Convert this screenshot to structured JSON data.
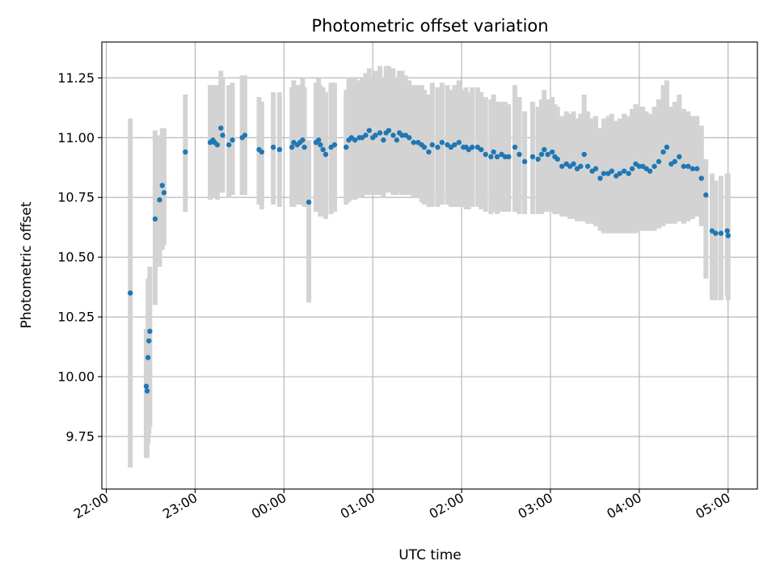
{
  "chart_data": {
    "type": "scatter",
    "title": "Photometric offset variation",
    "xlabel": "UTC time",
    "ylabel": "Photometric offset",
    "x_tick_labels": [
      "22:00",
      "23:00",
      "00:00",
      "01:00",
      "02:00",
      "03:00",
      "04:00",
      "05:00"
    ],
    "y_tick_labels": [
      "9.75",
      "10.00",
      "10.25",
      "10.50",
      "10.75",
      "11.00",
      "11.25"
    ],
    "y_ticks": [
      9.75,
      10.0,
      10.25,
      10.5,
      10.75,
      11.0,
      11.25
    ],
    "x_tick_hours": [
      0,
      1,
      2,
      3,
      4,
      5,
      6,
      7
    ],
    "xlim_hours_after_2200": [
      -0.05,
      7.33
    ],
    "ylim": [
      9.53,
      11.4
    ],
    "grid": true,
    "colors": {
      "point": "#1f77b4",
      "errorbar": "#d3d3d3",
      "grid": "#b0b0b0"
    },
    "series": [
      {
        "x_hours_after_2200": [
          0.27,
          0.45,
          0.46,
          0.47,
          0.48,
          0.49,
          0.55,
          0.6,
          0.63,
          0.65,
          0.89,
          1.17,
          1.2,
          1.22,
          1.25,
          1.29,
          1.31,
          1.38,
          1.42,
          1.53,
          1.56,
          1.72,
          1.75,
          1.88,
          1.95,
          2.09,
          2.11,
          2.15,
          2.18,
          2.21,
          2.23,
          2.28,
          2.36,
          2.39,
          2.41,
          2.44,
          2.47,
          2.53,
          2.57,
          2.7,
          2.73,
          2.76,
          2.8,
          2.85,
          2.88,
          2.92,
          2.96,
          3.0,
          3.03,
          3.08,
          3.12,
          3.15,
          3.18,
          3.23,
          3.27,
          3.3,
          3.33,
          3.37,
          3.41,
          3.46,
          3.51,
          3.55,
          3.58,
          3.63,
          3.67,
          3.73,
          3.78,
          3.84,
          3.88,
          3.92,
          3.97,
          4.02,
          4.05,
          4.08,
          4.12,
          4.18,
          4.22,
          4.27,
          4.33,
          4.36,
          4.4,
          4.45,
          4.49,
          4.53,
          4.6,
          4.65,
          4.71,
          4.8,
          4.86,
          4.9,
          4.93,
          4.97,
          5.02,
          5.05,
          5.08,
          5.13,
          5.18,
          5.22,
          5.26,
          5.3,
          5.34,
          5.38,
          5.42,
          5.47,
          5.51,
          5.56,
          5.6,
          5.65,
          5.69,
          5.74,
          5.78,
          5.83,
          5.88,
          5.92,
          5.96,
          6.0,
          6.04,
          6.08,
          6.12,
          6.17,
          6.22,
          6.27,
          6.31,
          6.36,
          6.4,
          6.45,
          6.5,
          6.55,
          6.6,
          6.65,
          6.7,
          6.75,
          6.82,
          6.86,
          6.92,
          6.99,
          7.0
        ],
        "y": [
          10.35,
          9.96,
          9.94,
          10.08,
          10.15,
          10.19,
          10.66,
          10.74,
          10.8,
          10.77,
          10.94,
          10.98,
          10.99,
          10.98,
          10.97,
          11.04,
          11.01,
          10.97,
          10.99,
          11.0,
          11.01,
          10.95,
          10.94,
          10.96,
          10.95,
          10.96,
          10.98,
          10.97,
          10.98,
          10.99,
          10.96,
          10.73,
          10.98,
          10.99,
          10.97,
          10.95,
          10.93,
          10.96,
          10.97,
          10.96,
          10.99,
          11.0,
          10.99,
          11.0,
          11.0,
          11.01,
          11.03,
          11.0,
          11.01,
          11.02,
          10.99,
          11.02,
          11.03,
          11.01,
          10.99,
          11.02,
          11.01,
          11.01,
          11.0,
          10.98,
          10.98,
          10.97,
          10.96,
          10.94,
          10.97,
          10.96,
          10.98,
          10.97,
          10.96,
          10.97,
          10.98,
          10.96,
          10.96,
          10.95,
          10.96,
          10.96,
          10.95,
          10.93,
          10.92,
          10.94,
          10.92,
          10.93,
          10.92,
          10.92,
          10.96,
          10.93,
          10.9,
          10.92,
          10.91,
          10.93,
          10.95,
          10.93,
          10.94,
          10.92,
          10.91,
          10.88,
          10.89,
          10.88,
          10.89,
          10.87,
          10.88,
          10.93,
          10.88,
          10.86,
          10.87,
          10.83,
          10.85,
          10.85,
          10.86,
          10.84,
          10.85,
          10.86,
          10.85,
          10.87,
          10.89,
          10.88,
          10.88,
          10.87,
          10.86,
          10.88,
          10.9,
          10.94,
          10.96,
          10.89,
          10.9,
          10.92,
          10.88,
          10.88,
          10.87,
          10.87,
          10.83,
          10.76,
          10.61,
          10.6,
          10.6,
          10.61,
          10.59
        ],
        "err_low": [
          0.73,
          0.3,
          0.28,
          0.36,
          0.39,
          0.4,
          0.36,
          0.28,
          0.27,
          0.22,
          0.25,
          0.24,
          0.23,
          0.23,
          0.23,
          0.27,
          0.24,
          0.22,
          0.23,
          0.24,
          0.25,
          0.23,
          0.24,
          0.24,
          0.24,
          0.25,
          0.27,
          0.25,
          0.26,
          0.27,
          0.25,
          0.42,
          0.29,
          0.3,
          0.3,
          0.28,
          0.27,
          0.28,
          0.28,
          0.24,
          0.26,
          0.26,
          0.25,
          0.25,
          0.25,
          0.25,
          0.27,
          0.24,
          0.25,
          0.26,
          0.24,
          0.25,
          0.26,
          0.25,
          0.23,
          0.25,
          0.25,
          0.25,
          0.24,
          0.23,
          0.23,
          0.24,
          0.24,
          0.23,
          0.26,
          0.25,
          0.26,
          0.25,
          0.25,
          0.26,
          0.27,
          0.25,
          0.26,
          0.25,
          0.25,
          0.25,
          0.25,
          0.24,
          0.24,
          0.25,
          0.24,
          0.24,
          0.23,
          0.23,
          0.27,
          0.25,
          0.22,
          0.24,
          0.23,
          0.25,
          0.26,
          0.24,
          0.25,
          0.24,
          0.23,
          0.21,
          0.22,
          0.22,
          0.23,
          0.22,
          0.23,
          0.28,
          0.24,
          0.22,
          0.24,
          0.22,
          0.25,
          0.25,
          0.26,
          0.24,
          0.25,
          0.26,
          0.25,
          0.27,
          0.29,
          0.27,
          0.27,
          0.26,
          0.25,
          0.27,
          0.28,
          0.31,
          0.32,
          0.25,
          0.26,
          0.27,
          0.24,
          0.23,
          0.21,
          0.2,
          0.2,
          0.35,
          0.29,
          0.28,
          0.28,
          0.27,
          0.27
        ],
        "err_high": [
          0.73,
          0.24,
          0.24,
          0.33,
          0.25,
          0.27,
          0.37,
          0.27,
          0.24,
          0.27,
          0.24,
          0.24,
          0.23,
          0.24,
          0.25,
          0.24,
          0.24,
          0.25,
          0.24,
          0.26,
          0.25,
          0.22,
          0.21,
          0.23,
          0.24,
          0.25,
          0.26,
          0.25,
          0.24,
          0.26,
          0.25,
          0.26,
          0.25,
          0.26,
          0.25,
          0.26,
          0.26,
          0.27,
          0.26,
          0.24,
          0.26,
          0.25,
          0.26,
          0.24,
          0.25,
          0.26,
          0.26,
          0.25,
          0.27,
          0.28,
          0.26,
          0.28,
          0.27,
          0.28,
          0.26,
          0.26,
          0.27,
          0.25,
          0.24,
          0.24,
          0.24,
          0.25,
          0.24,
          0.24,
          0.26,
          0.25,
          0.25,
          0.25,
          0.24,
          0.25,
          0.26,
          0.24,
          0.25,
          0.24,
          0.25,
          0.25,
          0.24,
          0.24,
          0.24,
          0.24,
          0.23,
          0.22,
          0.23,
          0.22,
          0.26,
          0.24,
          0.21,
          0.23,
          0.22,
          0.23,
          0.25,
          0.23,
          0.23,
          0.22,
          0.22,
          0.21,
          0.22,
          0.22,
          0.22,
          0.21,
          0.22,
          0.25,
          0.23,
          0.22,
          0.22,
          0.21,
          0.23,
          0.24,
          0.24,
          0.23,
          0.23,
          0.24,
          0.24,
          0.25,
          0.25,
          0.25,
          0.25,
          0.24,
          0.24,
          0.25,
          0.26,
          0.28,
          0.28,
          0.24,
          0.25,
          0.26,
          0.24,
          0.23,
          0.22,
          0.22,
          0.22,
          0.15,
          0.24,
          0.22,
          0.24,
          0.24,
          0.26
        ]
      }
    ]
  }
}
